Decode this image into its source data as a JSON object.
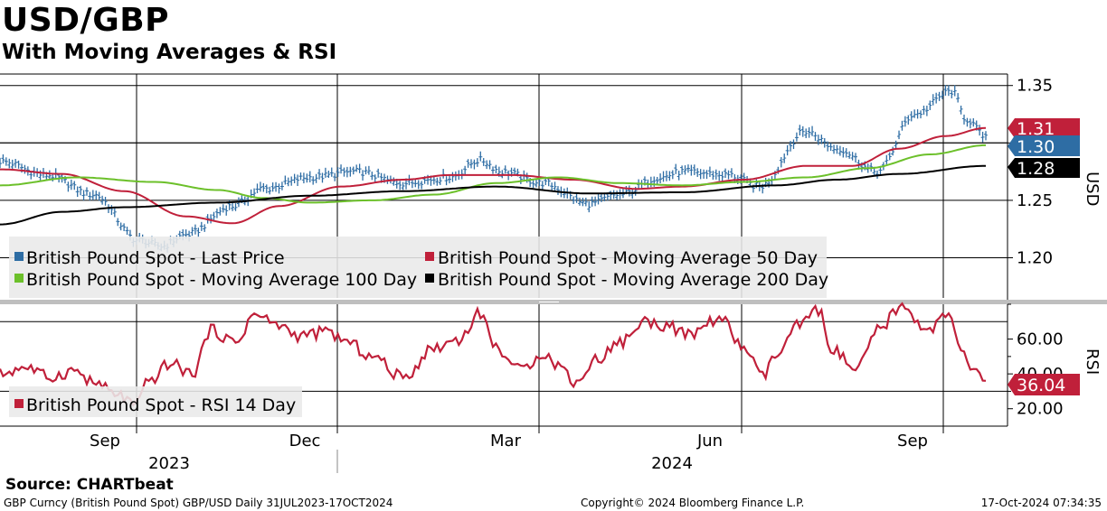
{
  "header": {
    "title": "USD/GBP",
    "subtitle": "With Moving Averages & RSI"
  },
  "footer": {
    "source": "Source:  CHARTbeat",
    "left": "GBP Curncy (British Pound Spot) GBP/USD  Daily 31JUL2023-17OCT2024",
    "center": "Copyright© 2024 Bloomberg Finance L.P.",
    "right": "17-Oct-2024 07:34:35"
  },
  "colors": {
    "price": "#2e6da4",
    "ma50": "#c0203a",
    "ma100": "#6cc02a",
    "ma200": "#000000",
    "rsi": "#c0203a"
  },
  "chart_data": [
    {
      "type": "line",
      "panel": "price",
      "ylabel": "USD",
      "ylim": [
        1.165,
        1.36
      ],
      "yticks": [
        "1.35",
        "1.30",
        "1.25",
        "1.20"
      ],
      "ytick_values": [
        1.35,
        1.3,
        1.25,
        1.2
      ],
      "x_months": [
        "Sep",
        "Dec",
        "Mar",
        "Jun",
        "Sep"
      ],
      "x_years": [
        "2023",
        "2024"
      ],
      "n_days": 319,
      "last_values": [
        {
          "label": "1.31",
          "color": "#c0203a"
        },
        {
          "label": "1.30",
          "color": "#2e6da4"
        },
        {
          "label": "1.28",
          "color": "#000000"
        }
      ],
      "legend": [
        "British Pound Spot - Last Price",
        "British Pound Spot - Moving Average 50 Day",
        "British Pound Spot - Moving Average 100 Day",
        "British Pound Spot - Moving Average 200 Day"
      ],
      "series": [
        {
          "name": "British Pound Spot - Last Price",
          "key_idx": [
            0,
            15,
            30,
            45,
            52,
            60,
            75,
            85,
            100,
            115,
            130,
            145,
            155,
            162,
            175,
            190,
            200,
            213,
            220,
            235,
            245,
            260,
            270,
            283,
            295,
            307,
            312,
            318
          ],
          "key_val": [
            1.284,
            1.272,
            1.255,
            1.215,
            1.21,
            1.22,
            1.245,
            1.26,
            1.27,
            1.275,
            1.265,
            1.27,
            1.285,
            1.275,
            1.265,
            1.247,
            1.255,
            1.27,
            1.275,
            1.272,
            1.262,
            1.31,
            1.295,
            1.275,
            1.325,
            1.345,
            1.32,
            1.305
          ]
        },
        {
          "name": "British Pound Spot - Moving Average 50 Day",
          "key_idx": [
            0,
            20,
            40,
            60,
            75,
            90,
            110,
            130,
            145,
            165,
            185,
            205,
            220,
            240,
            260,
            275,
            290,
            305,
            318
          ],
          "key_val": [
            1.277,
            1.273,
            1.258,
            1.236,
            1.23,
            1.245,
            1.262,
            1.268,
            1.272,
            1.272,
            1.268,
            1.26,
            1.262,
            1.268,
            1.28,
            1.28,
            1.295,
            1.306,
            1.313
          ]
        },
        {
          "name": "British Pound Spot - Moving Average 100 Day",
          "key_idx": [
            0,
            25,
            50,
            70,
            85,
            100,
            120,
            140,
            160,
            180,
            200,
            220,
            240,
            260,
            280,
            300,
            318
          ],
          "key_val": [
            1.263,
            1.27,
            1.266,
            1.259,
            1.252,
            1.248,
            1.25,
            1.255,
            1.265,
            1.27,
            1.265,
            1.263,
            1.266,
            1.27,
            1.278,
            1.29,
            1.298
          ]
        },
        {
          "name": "British Pound Spot - Moving Average 200 Day",
          "key_idx": [
            0,
            20,
            40,
            70,
            100,
            130,
            160,
            190,
            220,
            250,
            270,
            290,
            318
          ],
          "key_val": [
            1.229,
            1.24,
            1.244,
            1.248,
            1.254,
            1.258,
            1.262,
            1.256,
            1.257,
            1.263,
            1.268,
            1.273,
            1.28
          ]
        }
      ]
    },
    {
      "type": "line",
      "panel": "rsi",
      "ylabel": "RSI",
      "ylim": [
        10,
        80
      ],
      "yticks": [
        "60.00",
        "40.00",
        "20.00"
      ],
      "ytick_values": [
        60,
        40,
        20
      ],
      "ref_lines": [
        70,
        30
      ],
      "last_value": "36.04",
      "legend": [
        "British Pound Spot - RSI 14 Day"
      ],
      "series": [
        {
          "name": "British Pound Spot - RSI 14 Day",
          "key_idx": [
            0,
            8,
            16,
            24,
            30,
            38,
            44,
            48,
            55,
            62,
            68,
            76,
            82,
            90,
            96,
            106,
            112,
            120,
            130,
            140,
            148,
            155,
            160,
            168,
            175,
            180,
            186,
            192,
            200,
            208,
            215,
            222,
            232,
            240,
            246,
            250,
            258,
            264,
            268,
            276,
            284,
            290,
            300,
            306,
            310,
            315,
            318
          ],
          "key_val": [
            40,
            44,
            38,
            42,
            35,
            28,
            22,
            36,
            46,
            40,
            65,
            58,
            74,
            68,
            62,
            64,
            58,
            50,
            38,
            55,
            60,
            75,
            55,
            42,
            52,
            45,
            35,
            48,
            58,
            70,
            68,
            62,
            72,
            55,
            38,
            50,
            68,
            77,
            55,
            42,
            66,
            78,
            66,
            74,
            52,
            40,
            36.04
          ]
        }
      ]
    }
  ]
}
